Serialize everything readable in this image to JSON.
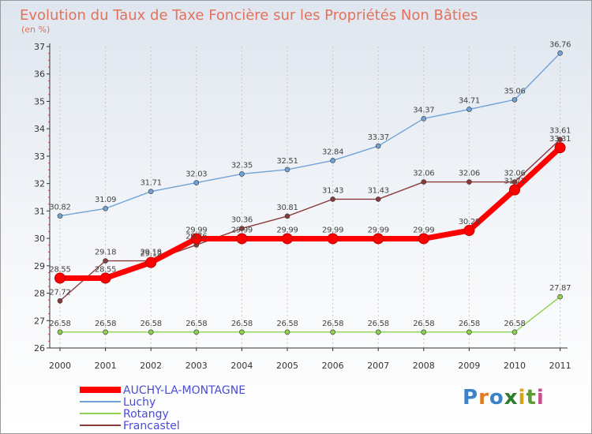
{
  "chart_data": {
    "type": "line",
    "title": "Evolution du Taux de Taxe Foncière sur les Propriétés Non Bâties",
    "ylabel": "(en %)",
    "categories": [
      "2000",
      "2001",
      "2002",
      "2003",
      "2004",
      "2005",
      "2006",
      "2007",
      "2008",
      "2009",
      "2010",
      "2011"
    ],
    "ylim": [
      26,
      37
    ],
    "yticks": [
      26,
      27,
      28,
      29,
      30,
      31,
      32,
      33,
      34,
      35,
      36,
      37
    ],
    "series": [
      {
        "name": "AUCHY-LA-MONTAGNE",
        "color": "#ff0000",
        "values": [
          28.55,
          28.55,
          29.12,
          29.99,
          29.99,
          29.99,
          29.99,
          29.99,
          29.99,
          30.29,
          31.77,
          33.31
        ],
        "labels": [
          "28.55",
          "28.55",
          "29.12",
          "29.99",
          "29.99",
          "29.99",
          "29.99",
          "29.99",
          "29.99",
          "30.29",
          "31.77",
          "33.31"
        ]
      },
      {
        "name": "Luchy",
        "color": "#6fa3d8",
        "values": [
          30.82,
          31.09,
          31.71,
          32.03,
          32.35,
          32.51,
          32.84,
          33.37,
          34.37,
          34.71,
          35.06,
          36.76
        ],
        "labels": [
          "30.82",
          "31.09",
          "31.71",
          "32.03",
          "32.35",
          "32.51",
          "32.84",
          "33.37",
          "34.37",
          "34.71",
          "35.06",
          "36.76"
        ]
      },
      {
        "name": "Rotangy",
        "color": "#8fd14f",
        "values": [
          26.58,
          26.58,
          26.58,
          26.58,
          26.58,
          26.58,
          26.58,
          26.58,
          26.58,
          26.58,
          26.58,
          27.87
        ],
        "labels": [
          "26.58",
          "26.58",
          "26.58",
          "26.58",
          "26.58",
          "26.58",
          "26.58",
          "26.58",
          "26.58",
          "26.58",
          "26.58",
          "27.87"
        ]
      },
      {
        "name": "Francastel",
        "color": "#8a3a3a",
        "values": [
          27.72,
          29.18,
          29.18,
          29.76,
          30.36,
          30.81,
          31.43,
          31.43,
          32.06,
          32.06,
          32.06,
          33.61
        ],
        "labels": [
          "27.72",
          "29.18",
          "29.18",
          "29.76",
          "30.36",
          "30.81",
          "31.43",
          "31.43",
          "32.06",
          "32.06",
          "32.06",
          "33.61"
        ]
      }
    ]
  },
  "logo": {
    "letters": [
      "P",
      "r",
      "o",
      "x",
      "i",
      "t",
      "i"
    ]
  }
}
